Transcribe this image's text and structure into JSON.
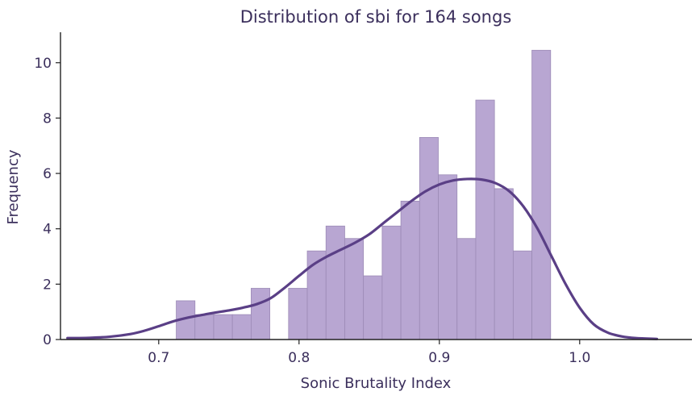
{
  "chart_data": {
    "type": "bar",
    "title": "Distribution of sbi for 164 songs",
    "xlabel": "Sonic Brutality Index",
    "ylabel": "Frequency",
    "xlim": [
      0.63,
      1.08
    ],
    "ylim": [
      0,
      11.1
    ],
    "xticks": [
      "0.7",
      "0.8",
      "0.9",
      "1.0"
    ],
    "xtick_values": [
      0.7,
      0.8,
      0.9,
      1.0
    ],
    "yticks": [
      "0",
      "2",
      "4",
      "6",
      "8",
      "10"
    ],
    "ytick_values": [
      0,
      2,
      4,
      6,
      8,
      10
    ],
    "grid": false,
    "colors": {
      "bar": "#b8a6d2",
      "bar_edge": "#9c8bb6",
      "kde": "#5a3f86",
      "text": "#3b2f5c"
    },
    "histogram": {
      "bin_start": 0.7125,
      "bin_width": 0.01334,
      "values": [
        1.4,
        0.9,
        0.9,
        0.9,
        1.85,
        0,
        1.85,
        3.2,
        4.1,
        3.65,
        2.3,
        4.1,
        5.0,
        7.3,
        5.95,
        3.65,
        8.65,
        5.45,
        3.2,
        10.45
      ]
    },
    "kde": {
      "x": [
        0.635,
        0.65,
        0.665,
        0.68,
        0.69,
        0.7,
        0.71,
        0.72,
        0.73,
        0.74,
        0.75,
        0.76,
        0.77,
        0.78,
        0.79,
        0.8,
        0.81,
        0.82,
        0.83,
        0.84,
        0.85,
        0.86,
        0.87,
        0.88,
        0.89,
        0.9,
        0.91,
        0.92,
        0.93,
        0.94,
        0.95,
        0.96,
        0.97,
        0.98,
        0.99,
        1.0,
        1.01,
        1.02,
        1.03,
        1.04,
        1.055
      ],
      "y": [
        0.05,
        0.06,
        0.1,
        0.2,
        0.32,
        0.48,
        0.65,
        0.78,
        0.88,
        0.97,
        1.05,
        1.15,
        1.28,
        1.5,
        1.88,
        2.3,
        2.7,
        3.0,
        3.25,
        3.5,
        3.8,
        4.2,
        4.6,
        5.0,
        5.35,
        5.6,
        5.75,
        5.8,
        5.78,
        5.65,
        5.35,
        4.8,
        4.0,
        3.0,
        2.0,
        1.15,
        0.55,
        0.25,
        0.11,
        0.05,
        0.02
      ]
    }
  }
}
